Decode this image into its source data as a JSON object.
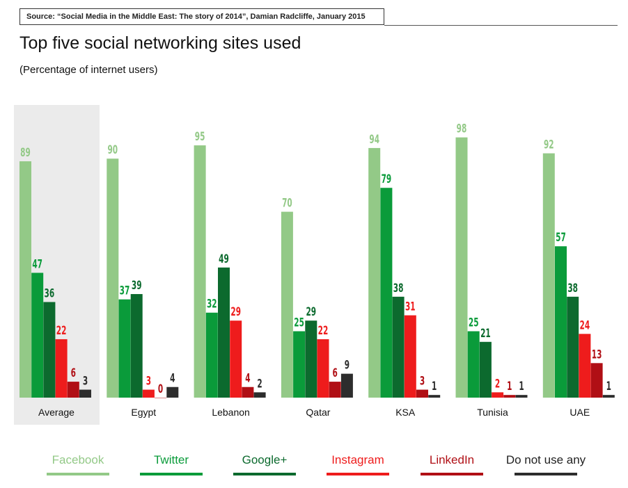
{
  "header": {
    "source": "Source: “Social Media in the Middle East: The story of 2014”, Damian Radcliffe, January 2015",
    "title": "Top five social networking sites used",
    "subtitle": "(Percentage of internet users)"
  },
  "colors": {
    "facebook": "#93c987",
    "twitter": "#0a9b3a",
    "googleplus": "#0c6a2e",
    "instagram": "#ee1c1c",
    "linkedin": "#b00f15",
    "none": "#2d2d2d",
    "highlight_bg": "#ebebeb"
  },
  "chart_data": {
    "type": "bar",
    "title": "Top five social networking sites used",
    "subtitle": "(Percentage of internet users)",
    "categories": [
      "Average",
      "Egypt",
      "Lebanon",
      "Qatar",
      "KSA",
      "Tunisia",
      "UAE"
    ],
    "highlighted_category": "Average",
    "ylim": [
      0,
      100
    ],
    "grid": false,
    "legend_position": "bottom",
    "series": [
      {
        "name": "Facebook",
        "color_key": "facebook",
        "values": [
          89,
          90,
          95,
          70,
          94,
          98,
          92
        ]
      },
      {
        "name": "Twitter",
        "color_key": "twitter",
        "values": [
          47,
          37,
          32,
          25,
          79,
          25,
          57
        ]
      },
      {
        "name": "Google+",
        "color_key": "googleplus",
        "values": [
          36,
          39,
          49,
          29,
          38,
          21,
          38
        ]
      },
      {
        "name": "Instagram",
        "color_key": "instagram",
        "values": [
          22,
          3,
          29,
          22,
          31,
          2,
          24
        ]
      },
      {
        "name": "LinkedIn",
        "color_key": "linkedin",
        "values": [
          6,
          0,
          4,
          6,
          3,
          1,
          13
        ]
      },
      {
        "name": "Do not use any",
        "color_key": "none",
        "values": [
          3,
          4,
          2,
          9,
          1,
          1,
          1
        ]
      }
    ]
  }
}
